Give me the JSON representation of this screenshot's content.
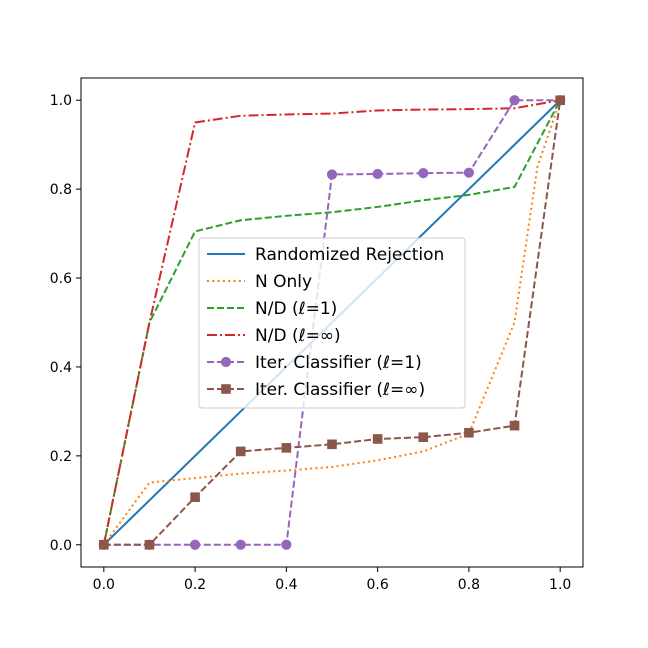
{
  "chart_data": {
    "type": "line",
    "title": "",
    "xlabel": "",
    "ylabel": "",
    "xlim": [
      -0.05,
      1.05
    ],
    "ylim": [
      -0.05,
      1.05
    ],
    "xticks": [
      0.0,
      0.2,
      0.4,
      0.6,
      0.8,
      1.0
    ],
    "yticks": [
      0.0,
      0.2,
      0.4,
      0.6,
      0.8,
      1.0
    ],
    "grid": false,
    "legend_position": "center",
    "series": [
      {
        "name": "Randomized Rejection",
        "color": "#1f77b4",
        "style": "solid",
        "marker": "none",
        "x": [
          0.0,
          1.0
        ],
        "y": [
          0.0,
          1.0
        ]
      },
      {
        "name": "N Only",
        "color": "#ff7f0e",
        "style": "dotted",
        "marker": "none",
        "x": [
          0.0,
          0.1,
          0.2,
          0.3,
          0.4,
          0.5,
          0.6,
          0.7,
          0.8,
          0.9,
          0.95,
          1.0
        ],
        "y": [
          0.0,
          0.14,
          0.15,
          0.16,
          0.167,
          0.175,
          0.19,
          0.21,
          0.25,
          0.5,
          0.85,
          1.0
        ]
      },
      {
        "name": "N/D (ℓ=1)",
        "color": "#2ca02c",
        "style": "dashed",
        "marker": "none",
        "x": [
          0.0,
          0.1,
          0.2,
          0.3,
          0.4,
          0.5,
          0.6,
          0.7,
          0.8,
          0.9,
          1.0
        ],
        "y": [
          0.0,
          0.5,
          0.705,
          0.73,
          0.74,
          0.748,
          0.76,
          0.775,
          0.787,
          0.805,
          1.0
        ]
      },
      {
        "name": "N/D (ℓ=∞)",
        "color": "#d62728",
        "style": "dashdot",
        "marker": "none",
        "x": [
          0.0,
          0.1,
          0.2,
          0.3,
          0.4,
          0.5,
          0.6,
          0.7,
          0.8,
          0.9,
          1.0
        ],
        "y": [
          0.0,
          0.5,
          0.95,
          0.965,
          0.968,
          0.97,
          0.977,
          0.979,
          0.98,
          0.982,
          1.0
        ]
      },
      {
        "name": "Iter. Classifier (ℓ=1)",
        "color": "#9467bd",
        "style": "dashed",
        "marker": "circle",
        "x": [
          0.0,
          0.1,
          0.2,
          0.3,
          0.4,
          0.5,
          0.6,
          0.7,
          0.8,
          0.9,
          1.0
        ],
        "y": [
          0.0,
          0.0,
          0.0,
          0.0,
          0.0,
          0.833,
          0.834,
          0.836,
          0.837,
          1.0,
          1.0
        ]
      },
      {
        "name": "Iter. Classifier (ℓ=∞)",
        "color": "#8c564b",
        "style": "dashed",
        "marker": "square",
        "x": [
          0.0,
          0.1,
          0.2,
          0.3,
          0.4,
          0.5,
          0.6,
          0.7,
          0.8,
          0.9,
          1.0
        ],
        "y": [
          0.0,
          0.0,
          0.107,
          0.21,
          0.218,
          0.226,
          0.238,
          0.242,
          0.252,
          0.268,
          1.0
        ]
      }
    ]
  }
}
